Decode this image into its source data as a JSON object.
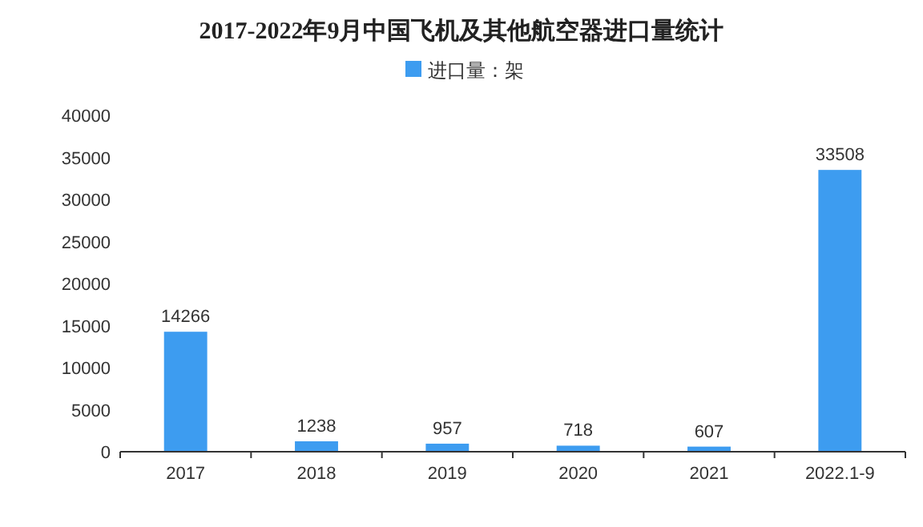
{
  "chart_data": {
    "type": "bar",
    "title": "2017-2022年9月中国飞机及其他航空器进口量统计",
    "categories": [
      "2017",
      "2018",
      "2019",
      "2020",
      "2021",
      "2022.1-9"
    ],
    "series": [
      {
        "name": "进口量：架",
        "color": "#3d9cf0",
        "values": [
          14266,
          1238,
          957,
          718,
          607,
          33508
        ]
      }
    ],
    "ylim": [
      0,
      40000
    ],
    "yticks": [
      0,
      5000,
      10000,
      15000,
      20000,
      25000,
      30000,
      35000,
      40000
    ],
    "data_labels": true,
    "legend": "top"
  }
}
